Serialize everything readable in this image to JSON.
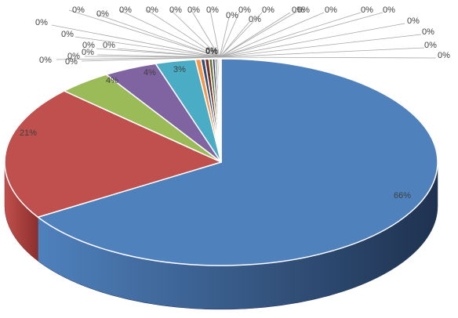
{
  "chart_data": {
    "type": "pie",
    "style": "3d-exploded-rim",
    "slices": [
      {
        "label": "66%",
        "value": 66,
        "color": "#4f81bd",
        "side": "#1f3250"
      },
      {
        "label": "21%",
        "value": 21,
        "color": "#c0504d",
        "side": "#8c2f2d"
      },
      {
        "label": "4%",
        "value": 4,
        "color": "#9bbb59",
        "side": "#6f8a3a"
      },
      {
        "label": "4%",
        "value": 4,
        "color": "#8064a2",
        "side": "#5a4476"
      },
      {
        "label": "3%",
        "value": 3,
        "color": "#4bacc6",
        "side": "#2f7a8e"
      },
      {
        "label": "0%",
        "value": 0.4,
        "color": "#f79646",
        "side": "#b06520"
      },
      {
        "label": "0%",
        "value": 0.3,
        "color": "#2c4d75",
        "side": "#1a2f48"
      },
      {
        "label": "0%",
        "value": 0.3,
        "color": "#772c2a",
        "side": "#4e1c1b"
      },
      {
        "label": "0%",
        "value": 0.25,
        "color": "#5f7530",
        "side": "#3f4e1f"
      },
      {
        "label": "0%",
        "value": 0.2,
        "color": "#4d3b62",
        "side": "#32263f"
      },
      {
        "label": "0%",
        "value": 0.15,
        "color": "#276a7c",
        "side": "#194552"
      },
      {
        "label": "0%",
        "value": 0.12,
        "color": "#b65708",
        "side": "#773905"
      },
      {
        "label": "0%",
        "value": 0.1,
        "color": "#729aca",
        "side": "#4b6b91"
      },
      {
        "label": "0%",
        "value": 0.08,
        "color": "#d9d9d9",
        "side": "#a0a0a0"
      }
    ],
    "small_labels": [
      "0%",
      "0%",
      "0%",
      "0%",
      "0%",
      "0%",
      "0%",
      "0%",
      "0%",
      "0%",
      "0%",
      "0%",
      "0%",
      "0%",
      "0%",
      "0%",
      "0%",
      "0%",
      "0%",
      "0%",
      "0%",
      "0%",
      "0%",
      "0%",
      "0%",
      "0%",
      "0%",
      "0%",
      "0%"
    ]
  }
}
